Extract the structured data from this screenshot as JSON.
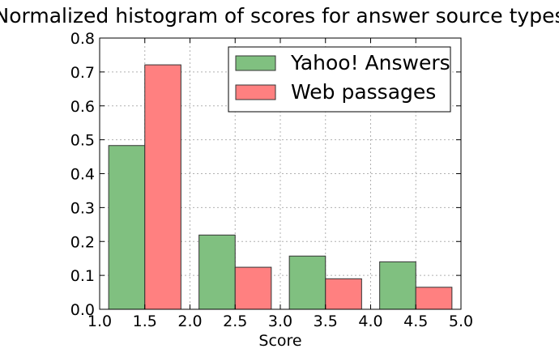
{
  "chart_data": {
    "type": "bar",
    "title": "Normalized histogram of scores for answer source types",
    "xlabel": "Score",
    "ylabel": "",
    "xlim": [
      1.0,
      5.0
    ],
    "ylim": [
      0.0,
      0.8
    ],
    "xticks": [
      "1.0",
      "1.5",
      "2.0",
      "2.5",
      "3.0",
      "3.5",
      "4.0",
      "4.5",
      "5.0"
    ],
    "yticks": [
      "0.0",
      "0.1",
      "0.2",
      "0.3",
      "0.4",
      "0.5",
      "0.6",
      "0.7",
      "0.8"
    ],
    "grid": true,
    "legend_position": "top-right",
    "bins": [
      {
        "start": 1.1,
        "mid": 1.5,
        "end": 1.9
      },
      {
        "start": 2.1,
        "mid": 2.5,
        "end": 2.9
      },
      {
        "start": 3.1,
        "mid": 3.5,
        "end": 3.9
      },
      {
        "start": 4.1,
        "mid": 4.5,
        "end": 4.9
      }
    ],
    "series": [
      {
        "name": "Yahoo! Answers",
        "color": "#80c080",
        "values": [
          0.483,
          0.219,
          0.157,
          0.14
        ]
      },
      {
        "name": "Web passages",
        "color": "#ff8080",
        "values": [
          0.721,
          0.124,
          0.09,
          0.065
        ]
      }
    ]
  }
}
